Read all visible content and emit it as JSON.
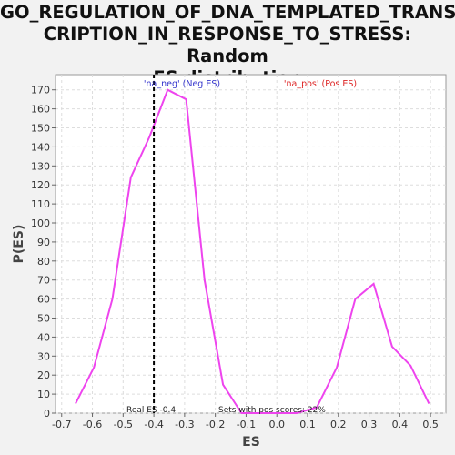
{
  "chart_data": {
    "type": "line",
    "title_lines": [
      "GO_REGULATION_OF_DNA_TEMPLATED_TRANS",
      "CRIPTION_IN_RESPONSE_TO_STRESS: Random",
      "ES distribution"
    ],
    "xlabel": "ES",
    "ylabel": "P(ES)",
    "xlim": [
      -0.72,
      0.55
    ],
    "ylim": [
      0,
      178
    ],
    "xticks": [
      -0.7,
      -0.6,
      -0.5,
      -0.4,
      -0.3,
      -0.2,
      -0.1,
      0.0,
      0.1,
      0.2,
      0.3,
      0.4,
      0.5
    ],
    "xtick_labels": [
      "-0.7",
      "-0.6",
      "-0.5",
      "-0.4",
      "-0.3",
      "-0.2",
      "-0.1",
      "0.0",
      "0.1",
      "0.2",
      "0.3",
      "0.4",
      "0.5"
    ],
    "yticks": [
      0,
      10,
      20,
      30,
      40,
      50,
      60,
      70,
      80,
      90,
      100,
      110,
      120,
      130,
      140,
      150,
      160,
      170
    ],
    "grid": true,
    "series": [
      {
        "color": "#ee44ee",
        "x": [
          -0.655,
          -0.595,
          -0.535,
          -0.475,
          -0.415,
          -0.355,
          -0.295,
          -0.235,
          -0.175,
          -0.115,
          -0.055,
          0.005,
          0.065,
          0.13,
          0.195,
          0.255,
          0.315,
          0.375,
          0.435,
          0.495
        ],
        "y": [
          5,
          24,
          60,
          124,
          145,
          170,
          165,
          70,
          15,
          0,
          0,
          0,
          0,
          3,
          24,
          60,
          68,
          35,
          25,
          5
        ]
      }
    ],
    "vline": {
      "x": -0.4,
      "label": "Real ES -0.4"
    },
    "annotations": {
      "neg_label": "'na_neg' (Neg ES)",
      "neg_color": "#3333cc",
      "pos_label": "'na_pos' (Pos ES)",
      "pos_color": "#dd2222",
      "pos_scores_text": "Sets with pos scores: 22%"
    }
  }
}
